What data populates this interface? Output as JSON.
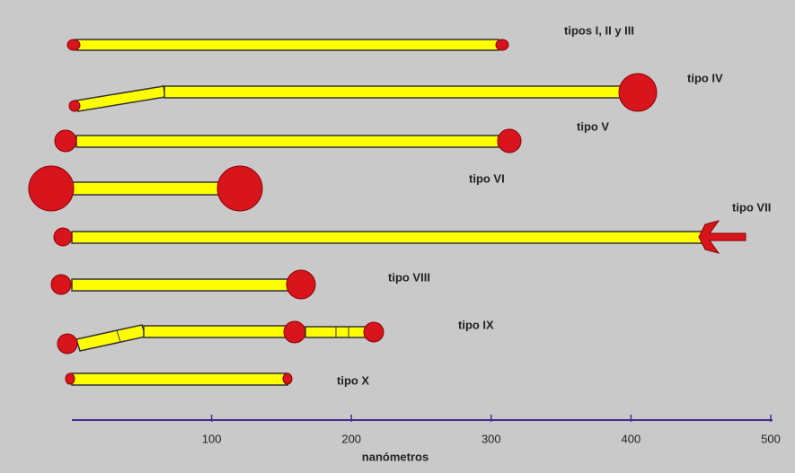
{
  "labels": [
    "tipos I, II y III",
    "tipo IV",
    "tipo V",
    "tipo VI",
    "tipo VII",
    "tipo VIII",
    "tipo IX",
    "tipo X"
  ],
  "axis": {
    "label": "nanómetros",
    "range": [
      0,
      500
    ],
    "ticks": [
      100,
      200,
      300,
      400,
      500
    ]
  }
}
